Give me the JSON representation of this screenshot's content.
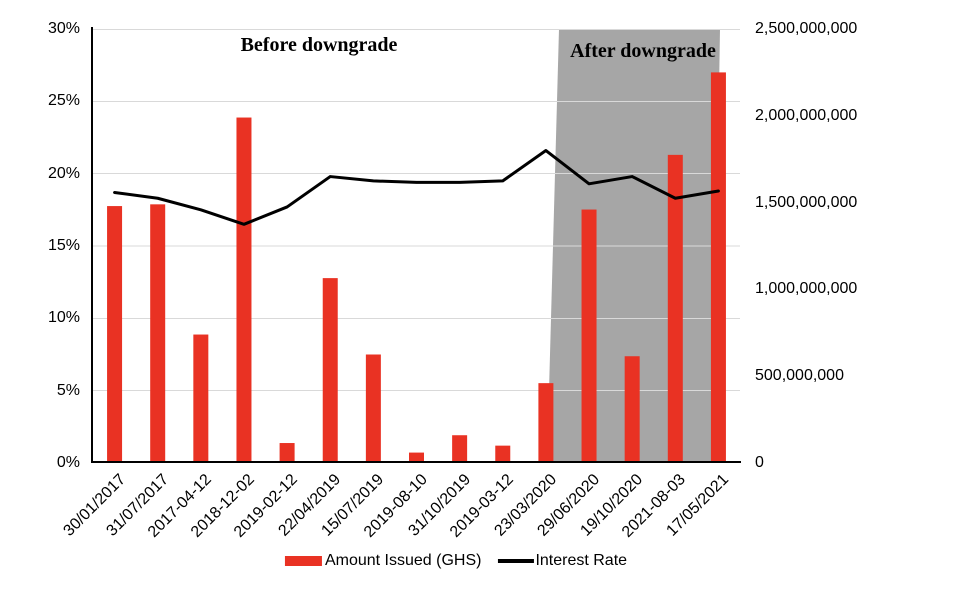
{
  "chart_data": {
    "type": "bar",
    "subtype": "combo-bar-line-dual-axis",
    "title": "",
    "categories": [
      "30/01/2017",
      "31/07/2017",
      "2017-04-12",
      "2018-12-02",
      "2019-02-12",
      "22/04/2019",
      "15/07/2019",
      "2019-08-10",
      "31/10/2019",
      "2019-03-12",
      "23/03/2020",
      "29/06/2020",
      "19/10/2020",
      "2021-08-03",
      "17/05/2021"
    ],
    "series": [
      {
        "name": "Amount Issued (GHS)",
        "type": "bar",
        "axis": "right",
        "color": "#e93223",
        "values": [
          1480000000,
          1490000000,
          740000000,
          1990000000,
          115000000,
          1065000000,
          625000000,
          60000000,
          160000000,
          100000000,
          460000000,
          1460000000,
          615000000,
          1775000000,
          2250000000
        ]
      },
      {
        "name": "Interest Rate",
        "type": "line",
        "axis": "left",
        "color": "#000000",
        "values_percent": [
          18.7,
          18.3,
          17.5,
          16.5,
          17.7,
          19.8,
          19.5,
          19.4,
          19.4,
          19.5,
          21.6,
          19.3,
          19.8,
          18.3,
          18.8
        ]
      }
    ],
    "left_axis": {
      "unit": "%",
      "min": 0,
      "max": 30,
      "tick_step": 5,
      "tick_labels": [
        "0%",
        "5%",
        "10%",
        "15%",
        "20%",
        "25%",
        "30%"
      ]
    },
    "right_axis": {
      "min": 0,
      "max": 2500000000,
      "tick_step": 500000000,
      "tick_labels": [
        "0",
        "500,000,000",
        "1,000,000,000",
        "1,500,000,000",
        "2,000,000,000",
        "2,500,000,000"
      ]
    },
    "annotations": [
      {
        "text": "Before downgrade",
        "area": "unshaded-left"
      },
      {
        "text": "After downgrade",
        "area": "shaded-right"
      }
    ],
    "shaded_region": {
      "label": "After downgrade",
      "from_category": "23/03/2020",
      "to_category": "17/05/2021",
      "color": "#a6a6a6"
    },
    "legend": {
      "position": "bottom",
      "entries": [
        "Amount Issued (GHS)",
        "Interest Rate"
      ]
    },
    "grid": true,
    "colors": {
      "bar": "#e93223",
      "line": "#000000",
      "shade": "#a6a6a6",
      "gridline": "#d9d9d9",
      "axis": "#000000"
    }
  }
}
